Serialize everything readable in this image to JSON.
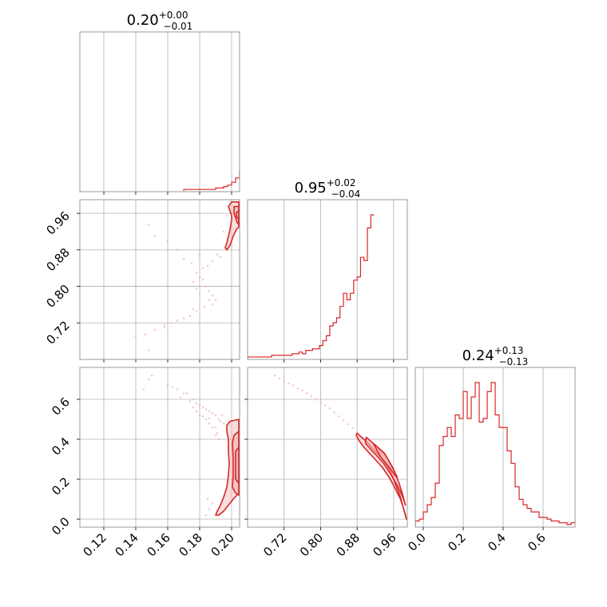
{
  "chart_data": {
    "type": "corner",
    "color": "#d62728",
    "fill_color": "#f4b3b3",
    "light_point_color": "#f0a8a8",
    "parameters": [
      {
        "title_value": "0.20",
        "title_plus": "+0.00",
        "title_minus": "−0.01",
        "range": [
          0.105,
          0.205
        ],
        "ticks": [
          0.12,
          0.14,
          0.16,
          0.18,
          0.2
        ],
        "tick_labels": [
          "0.12",
          "0.14",
          "0.16",
          "0.18",
          "0.20"
        ]
      },
      {
        "title_value": "0.95",
        "title_plus": "+0.02",
        "title_minus": "−0.04",
        "range": [
          0.64,
          0.99
        ],
        "ticks": [
          0.72,
          0.8,
          0.88,
          0.96
        ],
        "tick_labels": [
          "0.72",
          "0.80",
          "0.88",
          "0.96"
        ]
      },
      {
        "title_value": "0.24",
        "title_plus": "+0.13",
        "title_minus": "−0.13",
        "range": [
          -0.04,
          0.76
        ],
        "ticks": [
          0.0,
          0.2,
          0.4,
          0.6
        ],
        "tick_labels": [
          "0.0",
          "0.2",
          "0.4",
          "0.6"
        ]
      }
    ],
    "hist1d": [
      {
        "bin_start": 0.17,
        "bin_width": 0.0025,
        "counts": [
          1,
          1,
          1,
          1,
          1,
          1,
          1,
          1,
          2,
          2,
          3,
          4,
          6,
          9,
          14,
          20,
          30,
          45,
          68,
          85,
          100,
          0
        ]
      },
      {
        "bin_start": 0.64,
        "bin_width": 0.0075,
        "counts": [
          1,
          1,
          1,
          1,
          1,
          1,
          1,
          2,
          2,
          2,
          2,
          2,
          2,
          3,
          3,
          4,
          3,
          5,
          5,
          6,
          6,
          8,
          11,
          14,
          20,
          22,
          25,
          32,
          40,
          36,
          40,
          48,
          50,
          62,
          60,
          80,
          88
        ]
      },
      {
        "bin_start": -0.04,
        "bin_width": 0.02,
        "counts": [
          3,
          4,
          8,
          12,
          16,
          24,
          45,
          50,
          55,
          50,
          62,
          60,
          75,
          60,
          72,
          80,
          58,
          60,
          75,
          80,
          62,
          55,
          55,
          42,
          35,
          22,
          15,
          12,
          10,
          8,
          8,
          5,
          5,
          4,
          3,
          3,
          2,
          2,
          1,
          2
        ]
      }
    ],
    "scatter_sparse": {
      "p1_vs_p0": [
        [
          0.148,
          0.935
        ],
        [
          0.152,
          0.91
        ],
        [
          0.16,
          0.9
        ],
        [
          0.166,
          0.88
        ],
        [
          0.17,
          0.86
        ],
        [
          0.175,
          0.85
        ],
        [
          0.178,
          0.83
        ],
        [
          0.18,
          0.82
        ],
        [
          0.182,
          0.815
        ],
        [
          0.184,
          0.8
        ],
        [
          0.186,
          0.79
        ],
        [
          0.188,
          0.78
        ],
        [
          0.19,
          0.77
        ],
        [
          0.186,
          0.77
        ],
        [
          0.188,
          0.76
        ],
        [
          0.183,
          0.755
        ],
        [
          0.178,
          0.745
        ],
        [
          0.174,
          0.735
        ],
        [
          0.17,
          0.73
        ],
        [
          0.166,
          0.725
        ],
        [
          0.162,
          0.72
        ],
        [
          0.158,
          0.71
        ],
        [
          0.152,
          0.705
        ],
        [
          0.146,
          0.695
        ],
        [
          0.14,
          0.69
        ],
        [
          0.148,
          0.66
        ],
        [
          0.158,
          0.715
        ],
        [
          0.176,
          0.75
        ],
        [
          0.178,
          0.795
        ],
        [
          0.185,
          0.845
        ],
        [
          0.188,
          0.855
        ],
        [
          0.191,
          0.87
        ],
        [
          0.193,
          0.865
        ],
        [
          0.195,
          0.92
        ],
        [
          0.197,
          0.955
        ],
        [
          0.176,
          0.81
        ],
        [
          0.18,
          0.87
        ],
        [
          0.182,
          0.84
        ]
      ],
      "p2_vs_p0": [
        [
          0.148,
          0.7
        ],
        [
          0.15,
          0.72
        ],
        [
          0.145,
          0.65
        ],
        [
          0.16,
          0.67
        ],
        [
          0.166,
          0.65
        ],
        [
          0.17,
          0.63
        ],
        [
          0.176,
          0.6
        ],
        [
          0.178,
          0.58
        ],
        [
          0.18,
          0.57
        ],
        [
          0.182,
          0.56
        ],
        [
          0.184,
          0.55
        ],
        [
          0.186,
          0.54
        ],
        [
          0.188,
          0.53
        ],
        [
          0.19,
          0.52
        ],
        [
          0.192,
          0.5
        ],
        [
          0.172,
          0.63
        ],
        [
          0.168,
          0.61
        ],
        [
          0.178,
          0.54
        ],
        [
          0.18,
          0.52
        ],
        [
          0.184,
          0.5
        ],
        [
          0.186,
          0.48
        ],
        [
          0.188,
          0.46
        ],
        [
          0.19,
          0.42
        ],
        [
          0.174,
          0.59
        ],
        [
          0.176,
          0.56
        ],
        [
          0.163,
          0.66
        ],
        [
          0.194,
          0.52
        ],
        [
          0.193,
          0.49
        ],
        [
          0.195,
          0.48
        ],
        [
          0.182,
          0.515
        ],
        [
          0.186,
          0.505
        ],
        [
          0.19,
          0.46
        ],
        [
          0.191,
          0.43
        ],
        [
          0.192,
          0.4
        ],
        [
          0.185,
          0.1
        ],
        [
          0.188,
          0.08
        ],
        [
          0.184,
          0.02
        ],
        [
          0.186,
          0.05
        ]
      ],
      "p2_vs_p1": [
        [
          0.7,
          0.72
        ],
        [
          0.71,
          0.705
        ],
        [
          0.72,
          0.69
        ],
        [
          0.73,
          0.68
        ],
        [
          0.74,
          0.67
        ],
        [
          0.75,
          0.655
        ],
        [
          0.76,
          0.645
        ],
        [
          0.77,
          0.63
        ],
        [
          0.78,
          0.615
        ],
        [
          0.79,
          0.6
        ],
        [
          0.8,
          0.585
        ],
        [
          0.81,
          0.57
        ],
        [
          0.82,
          0.555
        ],
        [
          0.83,
          0.535
        ],
        [
          0.84,
          0.515
        ],
        [
          0.85,
          0.495
        ],
        [
          0.86,
          0.475
        ],
        [
          0.87,
          0.455
        ],
        [
          0.88,
          0.435
        ]
      ]
    },
    "contours": {
      "p1_vs_p0": [
        [
          [
            0.2045,
            0.985
          ],
          [
            0.2,
            0.985
          ],
          [
            0.198,
            0.975
          ],
          [
            0.199,
            0.965
          ],
          [
            0.2,
            0.955
          ],
          [
            0.2,
            0.945
          ],
          [
            0.1995,
            0.935
          ],
          [
            0.199,
            0.925
          ],
          [
            0.198,
            0.91
          ],
          [
            0.197,
            0.895
          ],
          [
            0.196,
            0.885
          ],
          [
            0.197,
            0.88
          ],
          [
            0.199,
            0.89
          ],
          [
            0.201,
            0.91
          ],
          [
            0.203,
            0.925
          ],
          [
            0.2045,
            0.93
          ]
        ],
        [
          [
            0.2045,
            0.975
          ],
          [
            0.2015,
            0.975
          ],
          [
            0.2015,
            0.96
          ],
          [
            0.2025,
            0.95
          ],
          [
            0.2035,
            0.94
          ],
          [
            0.2045,
            0.935
          ]
        ],
        [
          [
            0.2045,
            0.965
          ],
          [
            0.203,
            0.962
          ],
          [
            0.203,
            0.952
          ],
          [
            0.2045,
            0.948
          ]
        ]
      ],
      "p2_vs_p0": [
        [
          [
            0.2045,
            0.5
          ],
          [
            0.199,
            0.49
          ],
          [
            0.197,
            0.47
          ],
          [
            0.197,
            0.44
          ],
          [
            0.198,
            0.4
          ],
          [
            0.198,
            0.34
          ],
          [
            0.1985,
            0.28
          ],
          [
            0.198,
            0.22
          ],
          [
            0.197,
            0.16
          ],
          [
            0.195,
            0.11
          ],
          [
            0.193,
            0.07
          ],
          [
            0.191,
            0.04
          ],
          [
            0.19,
            0.02
          ],
          [
            0.192,
            0.02
          ],
          [
            0.195,
            0.04
          ],
          [
            0.198,
            0.07
          ],
          [
            0.201,
            0.1
          ],
          [
            0.2045,
            0.13
          ]
        ],
        [
          [
            0.2045,
            0.44
          ],
          [
            0.2015,
            0.42
          ],
          [
            0.2005,
            0.38
          ],
          [
            0.201,
            0.3
          ],
          [
            0.201,
            0.22
          ],
          [
            0.2005,
            0.16
          ],
          [
            0.2025,
            0.13
          ],
          [
            0.2045,
            0.12
          ]
        ],
        [
          [
            0.2045,
            0.36
          ],
          [
            0.2025,
            0.34
          ],
          [
            0.2025,
            0.26
          ],
          [
            0.2025,
            0.2
          ],
          [
            0.2045,
            0.18
          ]
        ]
      ],
      "p2_vs_p1": [
        [
          [
            0.88,
            0.43
          ],
          [
            0.9,
            0.39
          ],
          [
            0.92,
            0.34
          ],
          [
            0.94,
            0.29
          ],
          [
            0.955,
            0.23
          ],
          [
            0.965,
            0.17
          ],
          [
            0.975,
            0.11
          ],
          [
            0.982,
            0.05
          ],
          [
            0.988,
            0.0
          ],
          [
            0.985,
            0.03
          ],
          [
            0.975,
            0.1
          ],
          [
            0.962,
            0.16
          ],
          [
            0.95,
            0.21
          ],
          [
            0.935,
            0.26
          ],
          [
            0.915,
            0.31
          ],
          [
            0.895,
            0.36
          ],
          [
            0.885,
            0.39
          ],
          [
            0.878,
            0.42
          ]
        ],
        [
          [
            0.9,
            0.41
          ],
          [
            0.925,
            0.36
          ],
          [
            0.945,
            0.31
          ],
          [
            0.96,
            0.25
          ],
          [
            0.972,
            0.18
          ],
          [
            0.98,
            0.12
          ],
          [
            0.986,
            0.07
          ],
          [
            0.98,
            0.11
          ],
          [
            0.97,
            0.16
          ],
          [
            0.955,
            0.22
          ],
          [
            0.938,
            0.28
          ],
          [
            0.918,
            0.33
          ],
          [
            0.898,
            0.38
          ]
        ],
        [
          [
            0.915,
            0.38
          ],
          [
            0.94,
            0.33
          ],
          [
            0.955,
            0.27
          ],
          [
            0.968,
            0.21
          ],
          [
            0.963,
            0.22
          ],
          [
            0.95,
            0.26
          ],
          [
            0.932,
            0.31
          ]
        ]
      ]
    }
  }
}
